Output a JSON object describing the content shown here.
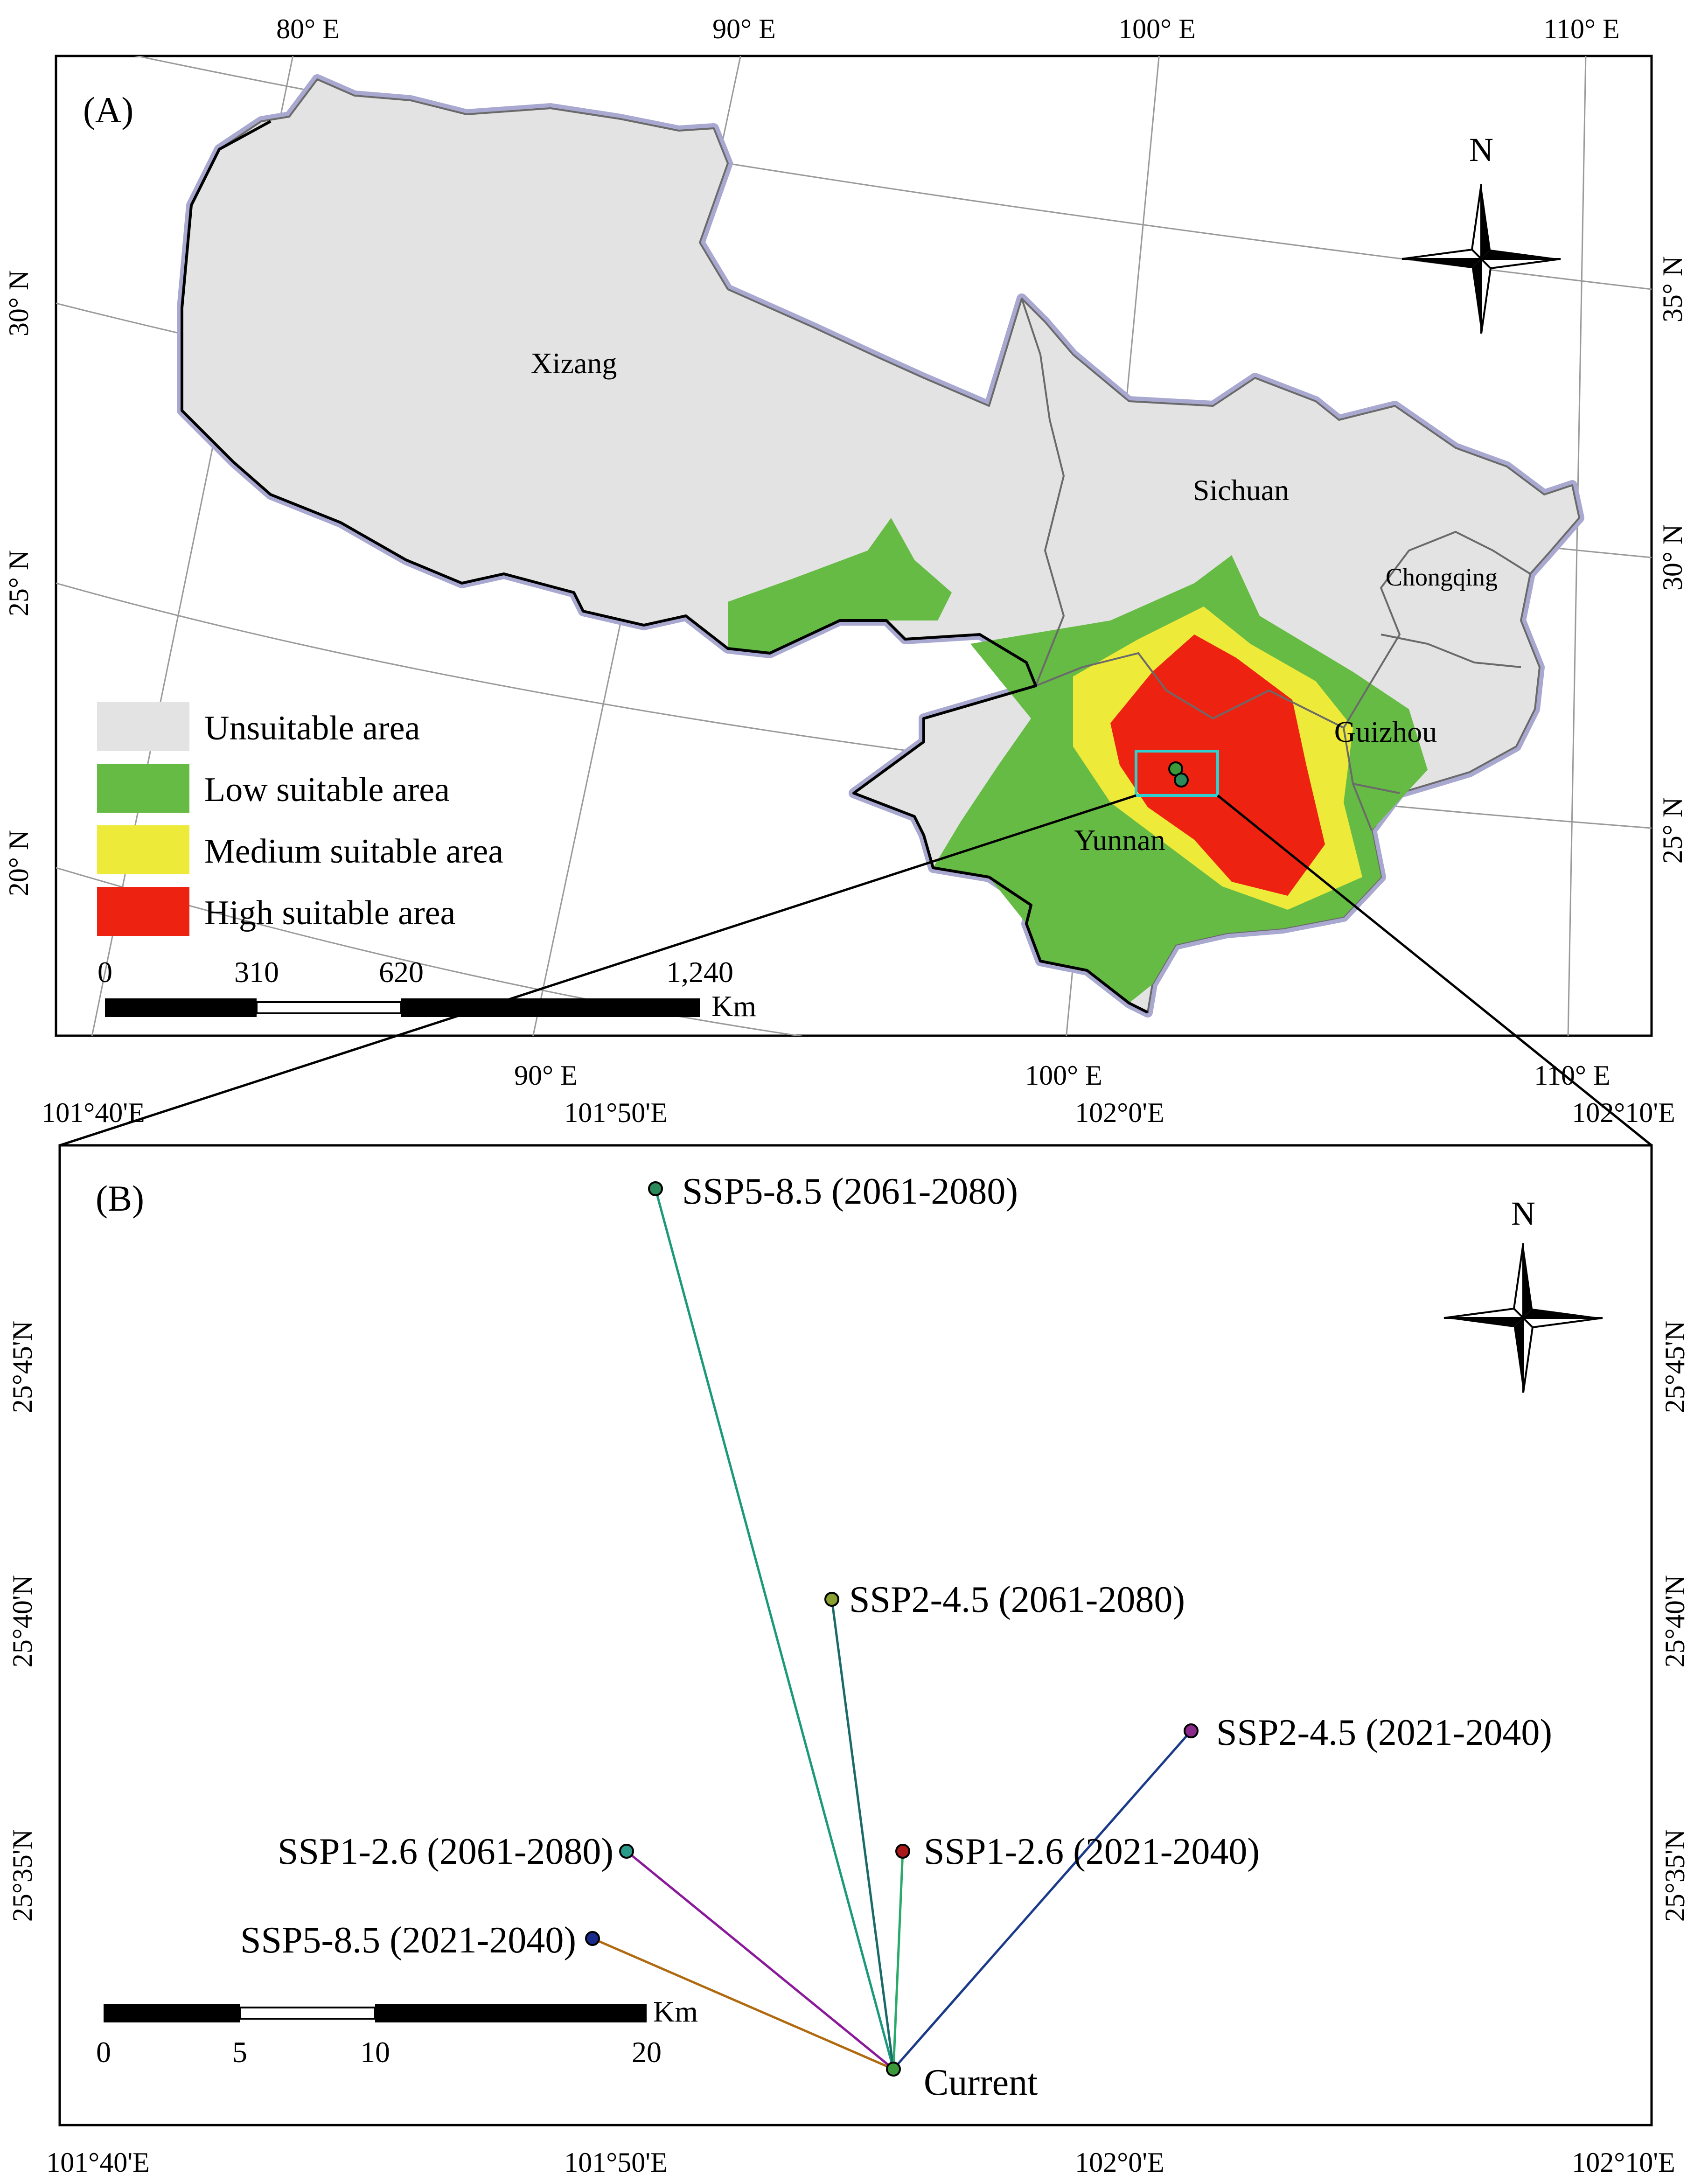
{
  "panel_a": {
    "label": "(A)",
    "top_lon_ticks": [
      "80° E",
      "90° E",
      "100° E",
      "110° E"
    ],
    "bottom_lon_ticks": [
      "90° E",
      "100° E",
      "110° E"
    ],
    "left_lat_ticks": [
      "30° N",
      "25° N",
      "20° N"
    ],
    "right_lat_ticks": [
      "35° N",
      "30° N",
      "25° N"
    ],
    "regions": [
      "Xizang",
      "Sichuan",
      "Chongqing",
      "Guizhou",
      "Yunnan"
    ],
    "north_label": "N",
    "legend": [
      {
        "label": "Unsuitable area",
        "color": "#e3e3e3"
      },
      {
        "label": "Low suitable area",
        "color": "#66bb44"
      },
      {
        "label": "Medium suitable area",
        "color": "#eeea3a"
      },
      {
        "label": "High suitable area",
        "color": "#ee2211"
      }
    ],
    "scale_ticks": [
      "0",
      "310",
      "620",
      "1,240"
    ],
    "scale_unit": "Km"
  },
  "panel_b": {
    "label": "(B)",
    "top_lon_ticks": [
      "101°40'E",
      "101°50'E",
      "102°0'E",
      "102°10'E"
    ],
    "bottom_lon_ticks": [
      "101°40'E",
      "101°50'E",
      "102°0'E",
      "102°10'E"
    ],
    "lat_ticks": [
      "25°45'N",
      "25°40'N",
      "25°35'N"
    ],
    "north_label": "N",
    "scale_ticks": [
      "0",
      "5",
      "10",
      "20"
    ],
    "scale_unit": "Km",
    "current": {
      "label": "Current",
      "color": "#3a9a3a"
    },
    "centroids": [
      {
        "label": "SSP5-8.5 (2061-2080)",
        "color": "#2a8a5a",
        "line": "#1a9a7a"
      },
      {
        "label": "SSP2-4.5 (2061-2080)",
        "color": "#8aa030",
        "line": "#1a6a6a"
      },
      {
        "label": "SSP2-4.5 (2021-2040)",
        "color": "#8a2a8a",
        "line": "#1a3a8a"
      },
      {
        "label": "SSP1-2.6 (2061-2080)",
        "color": "#2a9a8a",
        "line": "#8a1a9a"
      },
      {
        "label": "SSP1-2.6 (2021-2040)",
        "color": "#aa1a1a",
        "line": "#2aaa6a"
      },
      {
        "label": "SSP5-8.5 (2021-2040)",
        "color": "#1a2a8a",
        "line": "#b06a10"
      }
    ]
  }
}
